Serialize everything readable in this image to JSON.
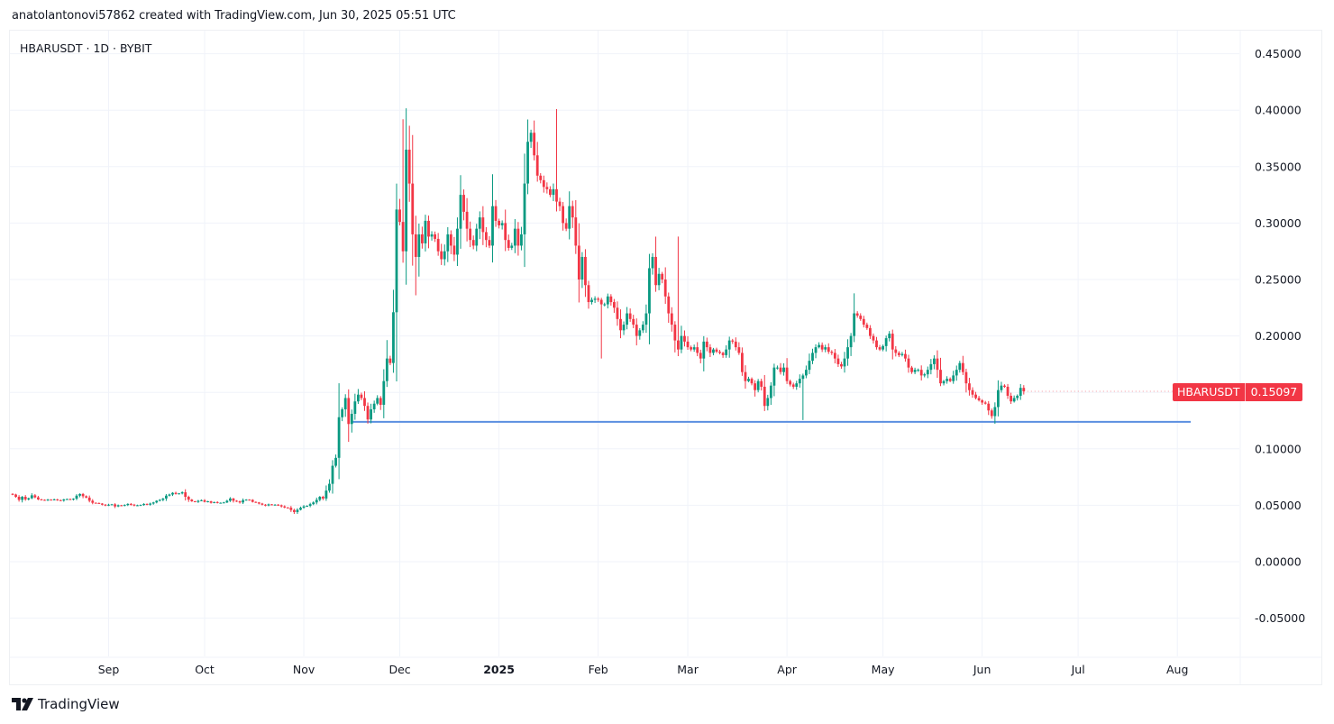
{
  "attribution": "anatolantonovi57862 created with TradingView.com, Jun 30, 2025 05:51 UTC",
  "legend": {
    "symbol_line": "HBARUSDT · 1D · BYBIT"
  },
  "last_price": {
    "symbol": "HBARUSDT",
    "value": "0.15097",
    "color": "#F23645"
  },
  "brand": {
    "label": "TradingView",
    "icon": "tradingview-logo-icon"
  },
  "colors": {
    "up": "#089981",
    "down": "#F23645",
    "support_line": "#5B8FE0",
    "grid": "#F0F3FA"
  },
  "chart_data": {
    "type": "candlestick",
    "title": "HBARUSDT · 1D · BYBIT",
    "xlabel": "",
    "ylabel": "",
    "ylim": [
      -0.1,
      0.48
    ],
    "y_ticks": [
      "0.45000",
      "0.40000",
      "0.35000",
      "0.30000",
      "0.25000",
      "0.20000",
      "0.15000",
      "0.10000",
      "0.05000",
      "0.00000",
      "-0.05000"
    ],
    "y_tick_values": [
      0.45,
      0.4,
      0.35,
      0.3,
      0.25,
      0.2,
      0.15,
      0.1,
      0.05,
      0.0,
      -0.05
    ],
    "x_ticks": [
      {
        "label": "Sep",
        "day": 30,
        "bold": false
      },
      {
        "label": "Oct",
        "day": 60,
        "bold": false
      },
      {
        "label": "Nov",
        "day": 91,
        "bold": false
      },
      {
        "label": "Dec",
        "day": 121,
        "bold": false
      },
      {
        "label": "2025",
        "day": 152,
        "bold": true
      },
      {
        "label": "Feb",
        "day": 183,
        "bold": false
      },
      {
        "label": "Mar",
        "day": 211,
        "bold": false
      },
      {
        "label": "Apr",
        "day": 242,
        "bold": false
      },
      {
        "label": "May",
        "day": 272,
        "bold": false
      },
      {
        "label": "Jun",
        "day": 303,
        "bold": false
      },
      {
        "label": "Jul",
        "day": 333,
        "bold": false
      },
      {
        "label": "Aug",
        "day": 364,
        "bold": false
      }
    ],
    "start_date": "2024-08-02",
    "last_value": 0.15097,
    "support_line": {
      "price": 0.1255,
      "from_day": 103,
      "to_day": 372
    },
    "closes": [
      0.0595,
      0.0575,
      0.0548,
      0.0575,
      0.0552,
      0.0562,
      0.0588,
      0.057,
      0.0552,
      0.0548,
      0.0545,
      0.055,
      0.0548,
      0.0552,
      0.0545,
      0.0542,
      0.0552,
      0.0555,
      0.055,
      0.0558,
      0.0585,
      0.06,
      0.058,
      0.0568,
      0.054,
      0.0522,
      0.052,
      0.0515,
      0.0505,
      0.0498,
      0.0505,
      0.0508,
      0.049,
      0.05,
      0.0495,
      0.0502,
      0.0512,
      0.0505,
      0.0498,
      0.05,
      0.0502,
      0.0512,
      0.0505,
      0.0515,
      0.0525,
      0.054,
      0.0548,
      0.056,
      0.0585,
      0.0595,
      0.061,
      0.06,
      0.0605,
      0.0615,
      0.0575,
      0.055,
      0.0535,
      0.053,
      0.054,
      0.0545,
      0.053,
      0.0535,
      0.0522,
      0.0528,
      0.052,
      0.0522,
      0.0525,
      0.054,
      0.056,
      0.054,
      0.0535,
      0.0525,
      0.0545,
      0.055,
      0.0548,
      0.053,
      0.0525,
      0.0515,
      0.0505,
      0.0498,
      0.0508,
      0.0505,
      0.0505,
      0.05,
      0.049,
      0.048,
      0.0478,
      0.0458,
      0.044,
      0.046,
      0.0478,
      0.049,
      0.0495,
      0.051,
      0.0525,
      0.0548,
      0.0575,
      0.056,
      0.063,
      0.069,
      0.085,
      0.092,
      0.128,
      0.135,
      0.145,
      0.122,
      0.131,
      0.142,
      0.148,
      0.145,
      0.138,
      0.126,
      0.135,
      0.14,
      0.145,
      0.139,
      0.16,
      0.18,
      0.176,
      0.221,
      0.312,
      0.301,
      0.275,
      0.365,
      0.335,
      0.29,
      0.27,
      0.29,
      0.282,
      0.302,
      0.288,
      0.29,
      0.286,
      0.275,
      0.268,
      0.275,
      0.29,
      0.28,
      0.272,
      0.295,
      0.325,
      0.31,
      0.295,
      0.285,
      0.28,
      0.295,
      0.305,
      0.292,
      0.285,
      0.28,
      0.315,
      0.302,
      0.298,
      0.3,
      0.285,
      0.278,
      0.28,
      0.295,
      0.28,
      0.29,
      0.335,
      0.372,
      0.38,
      0.36,
      0.342,
      0.338,
      0.332,
      0.33,
      0.325,
      0.33,
      0.319,
      0.315,
      0.3,
      0.295,
      0.315,
      0.305,
      0.28,
      0.25,
      0.27,
      0.245,
      0.23,
      0.232,
      0.233,
      0.232,
      0.228,
      0.228,
      0.235,
      0.23,
      0.225,
      0.215,
      0.205,
      0.21,
      0.22,
      0.215,
      0.21,
      0.2,
      0.205,
      0.21,
      0.22,
      0.26,
      0.27,
      0.245,
      0.255,
      0.25,
      0.235,
      0.22,
      0.21,
      0.196,
      0.188,
      0.2,
      0.195,
      0.19,
      0.188,
      0.19,
      0.185,
      0.18,
      0.195,
      0.19,
      0.185,
      0.188,
      0.186,
      0.185,
      0.183,
      0.188,
      0.196,
      0.195,
      0.19,
      0.185,
      0.168,
      0.16,
      0.162,
      0.158,
      0.152,
      0.16,
      0.155,
      0.138,
      0.145,
      0.156,
      0.172,
      0.172,
      0.168,
      0.172,
      0.16,
      0.157,
      0.155,
      0.158,
      0.162,
      0.165,
      0.17,
      0.178,
      0.185,
      0.19,
      0.192,
      0.188,
      0.19,
      0.186,
      0.185,
      0.18,
      0.175,
      0.173,
      0.18,
      0.19,
      0.2,
      0.22,
      0.218,
      0.215,
      0.21,
      0.207,
      0.2,
      0.196,
      0.19,
      0.188,
      0.191,
      0.198,
      0.202,
      0.188,
      0.185,
      0.183,
      0.184,
      0.18,
      0.172,
      0.168,
      0.17,
      0.17,
      0.165,
      0.166,
      0.17,
      0.175,
      0.18,
      0.17,
      0.158,
      0.16,
      0.162,
      0.16,
      0.165,
      0.17,
      0.176,
      0.168,
      0.158,
      0.152,
      0.148,
      0.145,
      0.143,
      0.141,
      0.14,
      0.134,
      0.129,
      0.137,
      0.152,
      0.156,
      0.155,
      0.147,
      0.142,
      0.145,
      0.147,
      0.154,
      0.151
    ]
  }
}
